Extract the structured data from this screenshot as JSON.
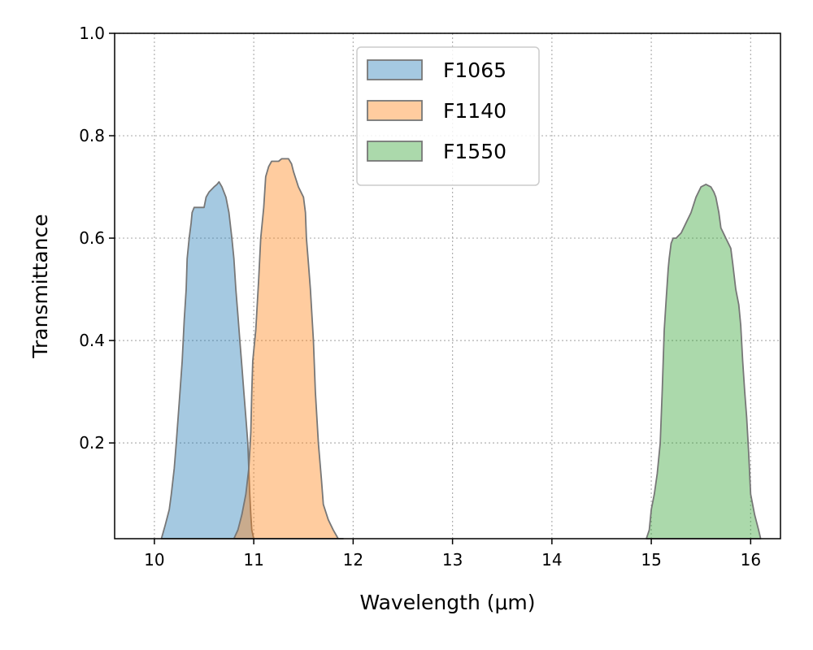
{
  "chart_data": {
    "type": "area",
    "xlabel": "Wavelength (μm)",
    "ylabel": "Transmittance",
    "xlim": [
      9.6,
      16.3
    ],
    "ylim": [
      0.013,
      1.0
    ],
    "xticks": [
      "10",
      "11",
      "12",
      "13",
      "14",
      "15",
      "16"
    ],
    "yticks": [
      "0.2",
      "0.4",
      "0.6",
      "0.8",
      "1.0"
    ],
    "grid": true,
    "legend_position": "upper-center",
    "series": [
      {
        "name": "F1065",
        "color": "#1f77b4",
        "x": [
          10.07,
          10.11,
          10.15,
          10.17,
          10.2,
          10.22,
          10.25,
          10.28,
          10.3,
          10.32,
          10.33,
          10.35,
          10.37,
          10.38,
          10.4,
          10.45,
          10.5,
          10.52,
          10.55,
          10.6,
          10.63,
          10.65,
          10.68,
          10.72,
          10.75,
          10.78,
          10.8,
          10.82,
          10.84,
          10.86,
          10.88,
          10.9,
          10.92,
          10.94,
          10.95,
          10.96,
          10.97,
          10.98,
          11.0
        ],
        "y": [
          0.013,
          0.04,
          0.07,
          0.1,
          0.15,
          0.2,
          0.28,
          0.36,
          0.44,
          0.5,
          0.56,
          0.6,
          0.63,
          0.65,
          0.66,
          0.66,
          0.66,
          0.68,
          0.69,
          0.7,
          0.705,
          0.71,
          0.7,
          0.68,
          0.65,
          0.6,
          0.56,
          0.5,
          0.45,
          0.4,
          0.35,
          0.3,
          0.25,
          0.2,
          0.15,
          0.1,
          0.06,
          0.03,
          0.013
        ]
      },
      {
        "name": "F1140",
        "color": "#ff7f0e",
        "x": [
          10.8,
          10.84,
          10.88,
          10.92,
          10.95,
          10.97,
          10.98,
          10.99,
          11.0,
          11.02,
          11.05,
          11.07,
          11.1,
          11.12,
          11.15,
          11.18,
          11.2,
          11.22,
          11.25,
          11.28,
          11.3,
          11.35,
          11.38,
          11.4,
          11.45,
          11.5,
          11.52,
          11.53,
          11.55,
          11.57,
          11.6,
          11.62,
          11.65,
          11.68,
          11.7,
          11.75,
          11.8,
          11.85,
          11.9
        ],
        "y": [
          0.013,
          0.03,
          0.06,
          0.1,
          0.15,
          0.22,
          0.3,
          0.36,
          0.38,
          0.42,
          0.52,
          0.6,
          0.66,
          0.72,
          0.74,
          0.75,
          0.75,
          0.75,
          0.75,
          0.755,
          0.755,
          0.755,
          0.745,
          0.73,
          0.7,
          0.68,
          0.65,
          0.6,
          0.55,
          0.5,
          0.4,
          0.3,
          0.2,
          0.13,
          0.08,
          0.05,
          0.03,
          0.013,
          0.013
        ]
      },
      {
        "name": "F1550",
        "color": "#2ca02c",
        "x": [
          14.95,
          14.98,
          15.0,
          15.03,
          15.06,
          15.09,
          15.11,
          15.13,
          15.15,
          15.17,
          15.18,
          15.2,
          15.22,
          15.25,
          15.3,
          15.35,
          15.4,
          15.45,
          15.5,
          15.55,
          15.6,
          15.63,
          15.65,
          15.68,
          15.7,
          15.75,
          15.8,
          15.82,
          15.85,
          15.88,
          15.9,
          15.92,
          15.94,
          15.96,
          15.98,
          16.0,
          16.04,
          16.08,
          16.1
        ],
        "y": [
          0.013,
          0.03,
          0.07,
          0.1,
          0.14,
          0.2,
          0.3,
          0.42,
          0.48,
          0.54,
          0.56,
          0.59,
          0.6,
          0.6,
          0.61,
          0.63,
          0.65,
          0.68,
          0.7,
          0.705,
          0.7,
          0.69,
          0.68,
          0.65,
          0.62,
          0.6,
          0.58,
          0.55,
          0.5,
          0.47,
          0.43,
          0.36,
          0.3,
          0.25,
          0.18,
          0.1,
          0.06,
          0.03,
          0.013
        ]
      }
    ]
  }
}
